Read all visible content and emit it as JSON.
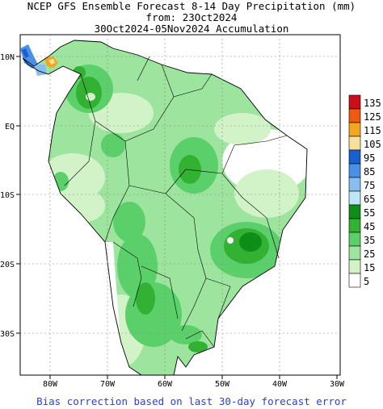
{
  "title": {
    "line1": "NCEP GFS Ensemble Forecast 8-14 Day Precipitation (mm)",
    "line2": "from: 23Oct2024",
    "line3": "30Oct2024-05Nov2024 Accumulation"
  },
  "map": {
    "lat_labels": [
      "10N",
      "EQ",
      "10S",
      "20S",
      "30S"
    ],
    "lon_labels": [
      "80W",
      "70W",
      "60W",
      "50W",
      "40W",
      "30W"
    ]
  },
  "legend": {
    "labels": [
      "135",
      "125",
      "115",
      "105",
      "95",
      "85",
      "75",
      "65",
      "55",
      "45",
      "35",
      "25",
      "15",
      "5"
    ],
    "colors": [
      "#c8101a",
      "#ee5a10",
      "#f5a620",
      "#f7e19a",
      "#1a5fcf",
      "#4a8fe8",
      "#88bdf0",
      "#bde6f6",
      "#0d8f17",
      "#33b133",
      "#5bd06a",
      "#9de49e",
      "#d2f3c8",
      "#ffffff"
    ]
  },
  "footer": "Bias correction based on last 30-day forecast error"
}
